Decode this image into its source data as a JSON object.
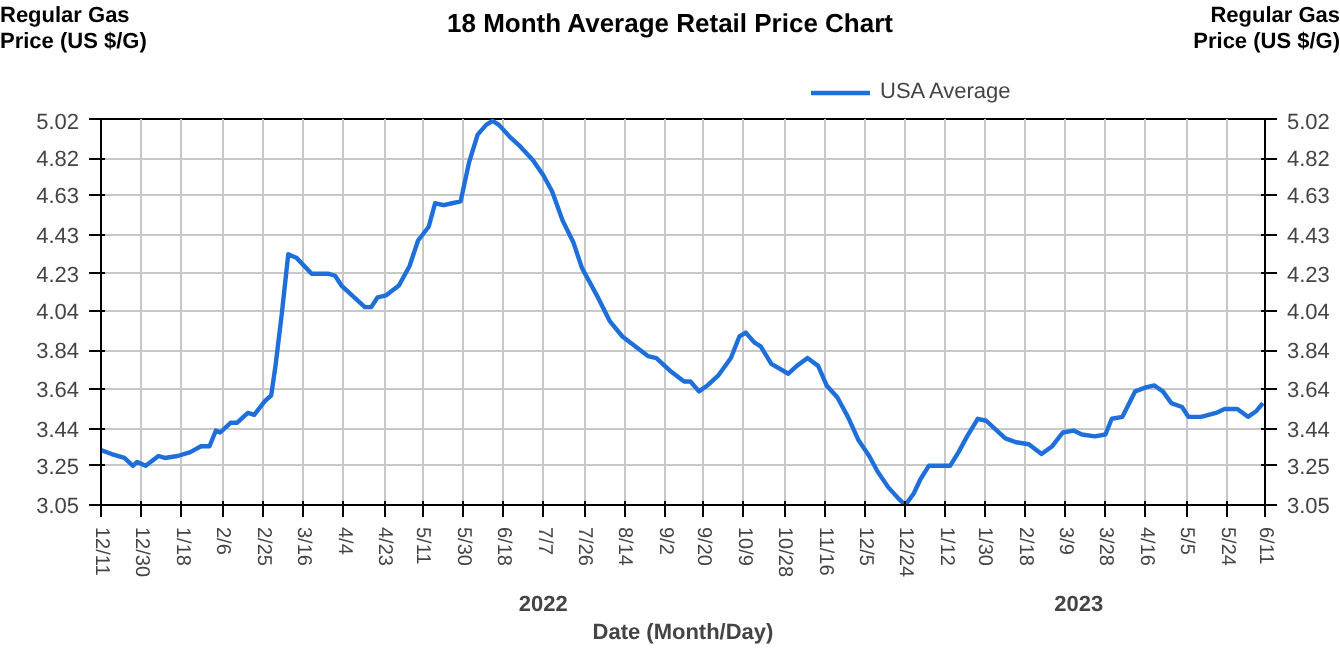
{
  "chart_data": {
    "type": "line",
    "title": "18 Month Average Retail Price Chart",
    "xlabel": "Date (Month/Day)",
    "ylabel": "Regular Gas\nPrice (US $/G)",
    "y2label": "Regular Gas\nPrice (US $/G)",
    "annotations": [
      "2022",
      "2023"
    ],
    "legend": "top",
    "grid": true,
    "line_style": "solid",
    "marker": "none",
    "xlim": [
      "2021-12-11",
      "2023-06-11"
    ],
    "xticks": [
      {
        "value": "2021-12-11",
        "label": "12/11"
      },
      {
        "value": "2021-12-30",
        "label": "12/30"
      },
      {
        "value": "2022-01-18",
        "label": "1/18"
      },
      {
        "value": "2022-02-06",
        "label": "2/6"
      },
      {
        "value": "2022-02-25",
        "label": "2/25"
      },
      {
        "value": "2022-03-16",
        "label": "3/16"
      },
      {
        "value": "2022-04-04",
        "label": "4/4"
      },
      {
        "value": "2022-04-23",
        "label": "4/23"
      },
      {
        "value": "2022-05-11",
        "label": "5/11"
      },
      {
        "value": "2022-05-30",
        "label": "5/30"
      },
      {
        "value": "2022-06-18",
        "label": "6/18"
      },
      {
        "value": "2022-07-07",
        "label": "7/7"
      },
      {
        "value": "2022-07-26",
        "label": "7/26"
      },
      {
        "value": "2022-08-14",
        "label": "8/14"
      },
      {
        "value": "2022-09-02",
        "label": "9/2"
      },
      {
        "value": "2022-09-20",
        "label": "9/20"
      },
      {
        "value": "2022-10-09",
        "label": "10/9"
      },
      {
        "value": "2022-10-28",
        "label": "10/28"
      },
      {
        "value": "2022-11-16",
        "label": "11/16"
      },
      {
        "value": "2022-12-05",
        "label": "12/5"
      },
      {
        "value": "2022-12-24",
        "label": "12/24"
      },
      {
        "value": "2023-01-12",
        "label": "1/12"
      },
      {
        "value": "2023-01-30",
        "label": "1/30"
      },
      {
        "value": "2023-02-18",
        "label": "2/18"
      },
      {
        "value": "2023-03-09",
        "label": "3/9"
      },
      {
        "value": "2023-03-28",
        "label": "3/28"
      },
      {
        "value": "2023-04-16",
        "label": "4/16"
      },
      {
        "value": "2023-05-05",
        "label": "5/5"
      },
      {
        "value": "2023-05-24",
        "label": "5/24"
      },
      {
        "value": "2023-06-11",
        "label": "6/11"
      }
    ],
    "ylim": [
      3.05,
      5.02
    ],
    "yticks": [
      3.05,
      3.25,
      3.44,
      3.64,
      3.84,
      4.04,
      4.23,
      4.43,
      4.63,
      4.82,
      5.02
    ],
    "y2lim": [
      3.05,
      5.02
    ],
    "y2ticks": [
      3.05,
      3.25,
      3.44,
      3.64,
      3.84,
      4.04,
      4.23,
      4.43,
      4.63,
      4.82,
      5.02
    ],
    "x": [
      "2021-12-11",
      "2021-12-16",
      "2021-12-22",
      "2021-12-26",
      "2021-12-28",
      "2022-01-01",
      "2022-01-07",
      "2022-01-10",
      "2022-01-16",
      "2022-01-22",
      "2022-01-27",
      "2022-01-31",
      "2022-02-03",
      "2022-02-05",
      "2022-02-10",
      "2022-02-13",
      "2022-02-18",
      "2022-02-21",
      "2022-02-26",
      "2022-03-01",
      "2022-03-03",
      "2022-03-06",
      "2022-03-09",
      "2022-03-13",
      "2022-03-20",
      "2022-03-28",
      "2022-03-31",
      "2022-04-03",
      "2022-04-09",
      "2022-04-14",
      "2022-04-17",
      "2022-04-20",
      "2022-04-24",
      "2022-04-30",
      "2022-05-05",
      "2022-05-09",
      "2022-05-14",
      "2022-05-17",
      "2022-05-21",
      "2022-05-25",
      "2022-05-29",
      "2022-06-02",
      "2022-06-06",
      "2022-06-10",
      "2022-06-13",
      "2022-06-16",
      "2022-06-21",
      "2022-06-26",
      "2022-07-02",
      "2022-07-07",
      "2022-07-11",
      "2022-07-16",
      "2022-07-21",
      "2022-07-25",
      "2022-08-01",
      "2022-08-07",
      "2022-08-13",
      "2022-08-19",
      "2022-08-25",
      "2022-08-29",
      "2022-09-05",
      "2022-09-11",
      "2022-09-14",
      "2022-09-18",
      "2022-09-22",
      "2022-09-27",
      "2022-10-03",
      "2022-10-07",
      "2022-10-10",
      "2022-10-14",
      "2022-10-17",
      "2022-10-22",
      "2022-10-30",
      "2022-11-03",
      "2022-11-08",
      "2022-11-13",
      "2022-11-17",
      "2022-11-22",
      "2022-11-27",
      "2022-12-02",
      "2022-12-07",
      "2022-12-11",
      "2022-12-16",
      "2022-12-21",
      "2022-12-24",
      "2022-12-28",
      "2022-12-31",
      "2023-01-04",
      "2023-01-09",
      "2023-01-14",
      "2023-01-18",
      "2023-01-22",
      "2023-01-27",
      "2023-01-31",
      "2023-02-05",
      "2023-02-09",
      "2023-02-14",
      "2023-02-20",
      "2023-02-26",
      "2023-03-03",
      "2023-03-08",
      "2023-03-13",
      "2023-03-17",
      "2023-03-23",
      "2023-03-28",
      "2023-03-31",
      "2023-04-05",
      "2023-04-11",
      "2023-04-16",
      "2023-04-20",
      "2023-04-24",
      "2023-04-28",
      "2023-05-03",
      "2023-05-06",
      "2023-05-12",
      "2023-05-19",
      "2023-05-23",
      "2023-05-29",
      "2023-06-03",
      "2023-06-07",
      "2023-06-10"
    ],
    "series": [
      {
        "name": "USA Average",
        "color": "#1e6fd9",
        "values": [
          3.33,
          3.31,
          3.29,
          3.25,
          3.27,
          3.25,
          3.3,
          3.29,
          3.3,
          3.32,
          3.35,
          3.35,
          3.43,
          3.42,
          3.47,
          3.47,
          3.52,
          3.51,
          3.58,
          3.61,
          3.76,
          4.03,
          4.33,
          4.31,
          4.23,
          4.23,
          4.22,
          4.17,
          4.11,
          4.06,
          4.06,
          4.11,
          4.12,
          4.17,
          4.27,
          4.4,
          4.47,
          4.59,
          4.58,
          4.59,
          4.6,
          4.8,
          4.94,
          4.99,
          5.01,
          4.99,
          4.93,
          4.88,
          4.81,
          4.73,
          4.65,
          4.5,
          4.39,
          4.26,
          4.12,
          3.99,
          3.91,
          3.86,
          3.81,
          3.8,
          3.73,
          3.68,
          3.68,
          3.63,
          3.66,
          3.71,
          3.8,
          3.91,
          3.93,
          3.88,
          3.86,
          3.77,
          3.72,
          3.76,
          3.8,
          3.76,
          3.66,
          3.6,
          3.5,
          3.38,
          3.3,
          3.22,
          3.14,
          3.08,
          3.05,
          3.11,
          3.18,
          3.25,
          3.25,
          3.25,
          3.32,
          3.4,
          3.49,
          3.48,
          3.43,
          3.39,
          3.37,
          3.36,
          3.31,
          3.35,
          3.42,
          3.43,
          3.41,
          3.4,
          3.41,
          3.49,
          3.5,
          3.63,
          3.65,
          3.66,
          3.63,
          3.57,
          3.55,
          3.5,
          3.5,
          3.52,
          3.54,
          3.54,
          3.5,
          3.53,
          3.57
        ]
      }
    ]
  }
}
